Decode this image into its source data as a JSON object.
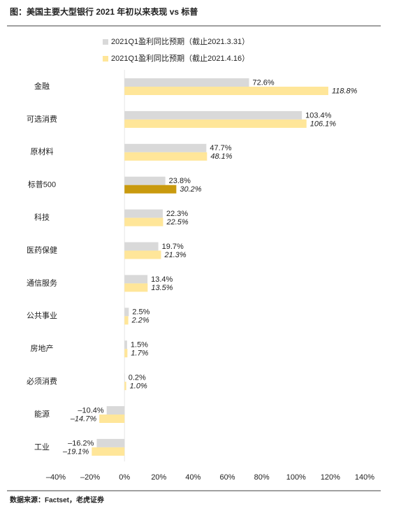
{
  "chart_data": {
    "type": "bar",
    "orientation": "horizontal",
    "title": "图：美国主要大型银行 2021 年初以来表现 vs 标普",
    "source": "数据来源：Factset，老虎证券",
    "categories": [
      "金融",
      "可选消费",
      "原材料",
      "标普500",
      "科技",
      "医药保健",
      "通信服务",
      "公共事业",
      "房地产",
      "必须消费",
      "能源",
      "工业"
    ],
    "series": [
      {
        "name": "2021Q1盈利同比预期（截止2021.3.31）",
        "color": "#d9d9d9",
        "italic": false,
        "values": [
          72.6,
          103.4,
          47.7,
          23.8,
          22.3,
          19.7,
          13.4,
          2.5,
          1.5,
          0.2,
          -10.4,
          -16.2
        ],
        "value_labels": [
          "72.6%",
          "103.4%",
          "47.7%",
          "23.8%",
          "22.3%",
          "19.7%",
          "13.4%",
          "2.5%",
          "1.5%",
          "0.2%",
          "–10.4%",
          "–16.2%"
        ]
      },
      {
        "name": "2021Q1盈利同比预期（截止2021.4.16）",
        "color": "#ffe699",
        "italic": true,
        "colors": [
          "#ffe699",
          "#ffe699",
          "#ffe699",
          "#c99a0e",
          "#ffe699",
          "#ffe699",
          "#ffe699",
          "#ffe699",
          "#ffe699",
          "#ffe699",
          "#ffe699",
          "#ffe699"
        ],
        "values": [
          118.8,
          106.1,
          48.1,
          30.2,
          22.5,
          21.3,
          13.5,
          2.2,
          1.7,
          1.0,
          -14.7,
          -19.1
        ],
        "value_labels": [
          "118.8%",
          "106.1%",
          "48.1%",
          "30.2%",
          "22.5%",
          "21.3%",
          "13.5%",
          "2.2%",
          "1.7%",
          "1.0%",
          "–14.7%",
          "–19.1%"
        ]
      }
    ],
    "xlim": [
      -40,
      140
    ],
    "xticks": [
      {
        "value": -40,
        "label": "–40%"
      },
      {
        "value": -20,
        "label": "–20%"
      },
      {
        "value": 0,
        "label": "0%"
      },
      {
        "value": 20,
        "label": "20%"
      },
      {
        "value": 40,
        "label": "40%"
      },
      {
        "value": 60,
        "label": "60%"
      },
      {
        "value": 80,
        "label": "80%"
      },
      {
        "value": 100,
        "label": "100%"
      },
      {
        "value": 120,
        "label": "120%"
      },
      {
        "value": 140,
        "label": "140%"
      }
    ],
    "grid": false
  }
}
